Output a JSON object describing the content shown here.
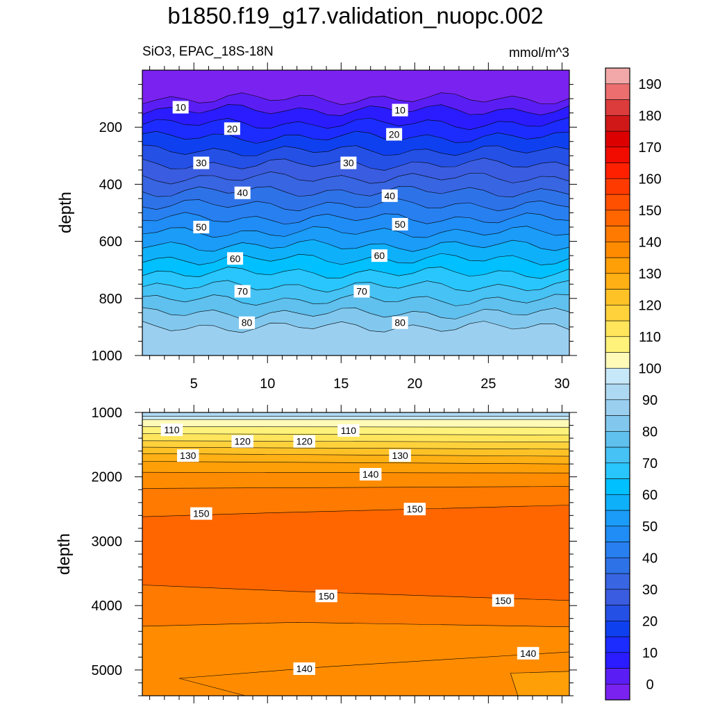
{
  "title": "b1850.f19_g17.validation_nuopc.002",
  "subtitle_left": "SiO3, EPAC_18S-18N",
  "subtitle_right": "mmol/m^3",
  "chart_data": [
    {
      "type": "heatmap",
      "subtype": "filled-contour",
      "panel": "upper",
      "ylabel": "depth",
      "x_ticks": [
        "5",
        "10",
        "15",
        "20",
        "25",
        "30"
      ],
      "y_ticks": [
        "200",
        "400",
        "600",
        "800",
        "1000"
      ],
      "xlim": [
        1.5,
        30.5
      ],
      "ylim": [
        1000,
        0
      ],
      "contour_labels": [
        {
          "text": "10",
          "x": 4.1,
          "y": 130
        },
        {
          "text": "10",
          "x": 19.0,
          "y": 140
        },
        {
          "text": "20",
          "x": 7.6,
          "y": 205
        },
        {
          "text": "20",
          "x": 18.6,
          "y": 225
        },
        {
          "text": "30",
          "x": 5.5,
          "y": 325
        },
        {
          "text": "30",
          "x": 15.5,
          "y": 325
        },
        {
          "text": "40",
          "x": 8.3,
          "y": 430
        },
        {
          "text": "40",
          "x": 18.3,
          "y": 440
        },
        {
          "text": "50",
          "x": 5.5,
          "y": 550
        },
        {
          "text": "50",
          "x": 19.0,
          "y": 540
        },
        {
          "text": "60",
          "x": 7.8,
          "y": 660
        },
        {
          "text": "60",
          "x": 17.6,
          "y": 650
        },
        {
          "text": "70",
          "x": 8.3,
          "y": 775
        },
        {
          "text": "70",
          "x": 16.4,
          "y": 775
        },
        {
          "text": "80",
          "x": 8.6,
          "y": 885
        },
        {
          "text": "80",
          "x": 19.0,
          "y": 885
        }
      ]
    },
    {
      "type": "heatmap",
      "subtype": "filled-contour",
      "panel": "lower",
      "ylabel": "depth",
      "y_ticks": [
        "1000",
        "2000",
        "3000",
        "4000",
        "5000"
      ],
      "xlim": [
        1.5,
        30.5
      ],
      "ylim": [
        5400,
        1000
      ],
      "contour_labels": [
        {
          "text": "110",
          "x": 3.5,
          "y": 1270
        },
        {
          "text": "110",
          "x": 15.5,
          "y": 1280
        },
        {
          "text": "120",
          "x": 8.3,
          "y": 1450
        },
        {
          "text": "120",
          "x": 12.5,
          "y": 1450
        },
        {
          "text": "130",
          "x": 4.6,
          "y": 1670
        },
        {
          "text": "130",
          "x": 19.0,
          "y": 1670
        },
        {
          "text": "140",
          "x": 17.0,
          "y": 1960
        },
        {
          "text": "150",
          "x": 5.5,
          "y": 2570
        },
        {
          "text": "150",
          "x": 20.0,
          "y": 2500
        },
        {
          "text": "150",
          "x": 14.0,
          "y": 3850
        },
        {
          "text": "150",
          "x": 26.0,
          "y": 3920
        },
        {
          "text": "140",
          "x": 12.5,
          "y": 4980
        },
        {
          "text": "140",
          "x": 27.7,
          "y": 4740
        }
      ]
    },
    {
      "type": "colorbar",
      "levels": [
        -5,
        0,
        5,
        10,
        15,
        20,
        25,
        30,
        35,
        40,
        45,
        50,
        55,
        60,
        65,
        70,
        75,
        80,
        85,
        90,
        95,
        100,
        105,
        110,
        115,
        120,
        125,
        130,
        135,
        140,
        145,
        150,
        155,
        160,
        165,
        170,
        175,
        180,
        185,
        190,
        195
      ],
      "tick_labels": [
        "0",
        "10",
        "20",
        "30",
        "40",
        "50",
        "60",
        "70",
        "80",
        "90",
        "100",
        "110",
        "120",
        "130",
        "140",
        "150",
        "160",
        "170",
        "180",
        "190"
      ],
      "colors": [
        "#7a22f0",
        "#5a1ef5",
        "#2a1cff",
        "#1c2cff",
        "#0f40f0",
        "#2450e6",
        "#3a5ce0",
        "#3865e2",
        "#2e72e8",
        "#287ff0",
        "#1f8df5",
        "#1a9cf8",
        "#0fb0fa",
        "#00c0ff",
        "#28c6fc",
        "#46c2f4",
        "#60c0ee",
        "#82c8ee",
        "#9acff0",
        "#aed9f2",
        "#c7e8f8",
        "#fffab8",
        "#fff27a",
        "#ffe55c",
        "#ffd23c",
        "#ffc226",
        "#ffb014",
        "#ff9f08",
        "#ff8c00",
        "#ff7a00",
        "#ff6600",
        "#ff5000",
        "#ff3a00",
        "#ff2000",
        "#f20c00",
        "#dc0000",
        "#d01818",
        "#dc3c3c",
        "#ec6e6e",
        "#f2a8a8"
      ]
    }
  ]
}
